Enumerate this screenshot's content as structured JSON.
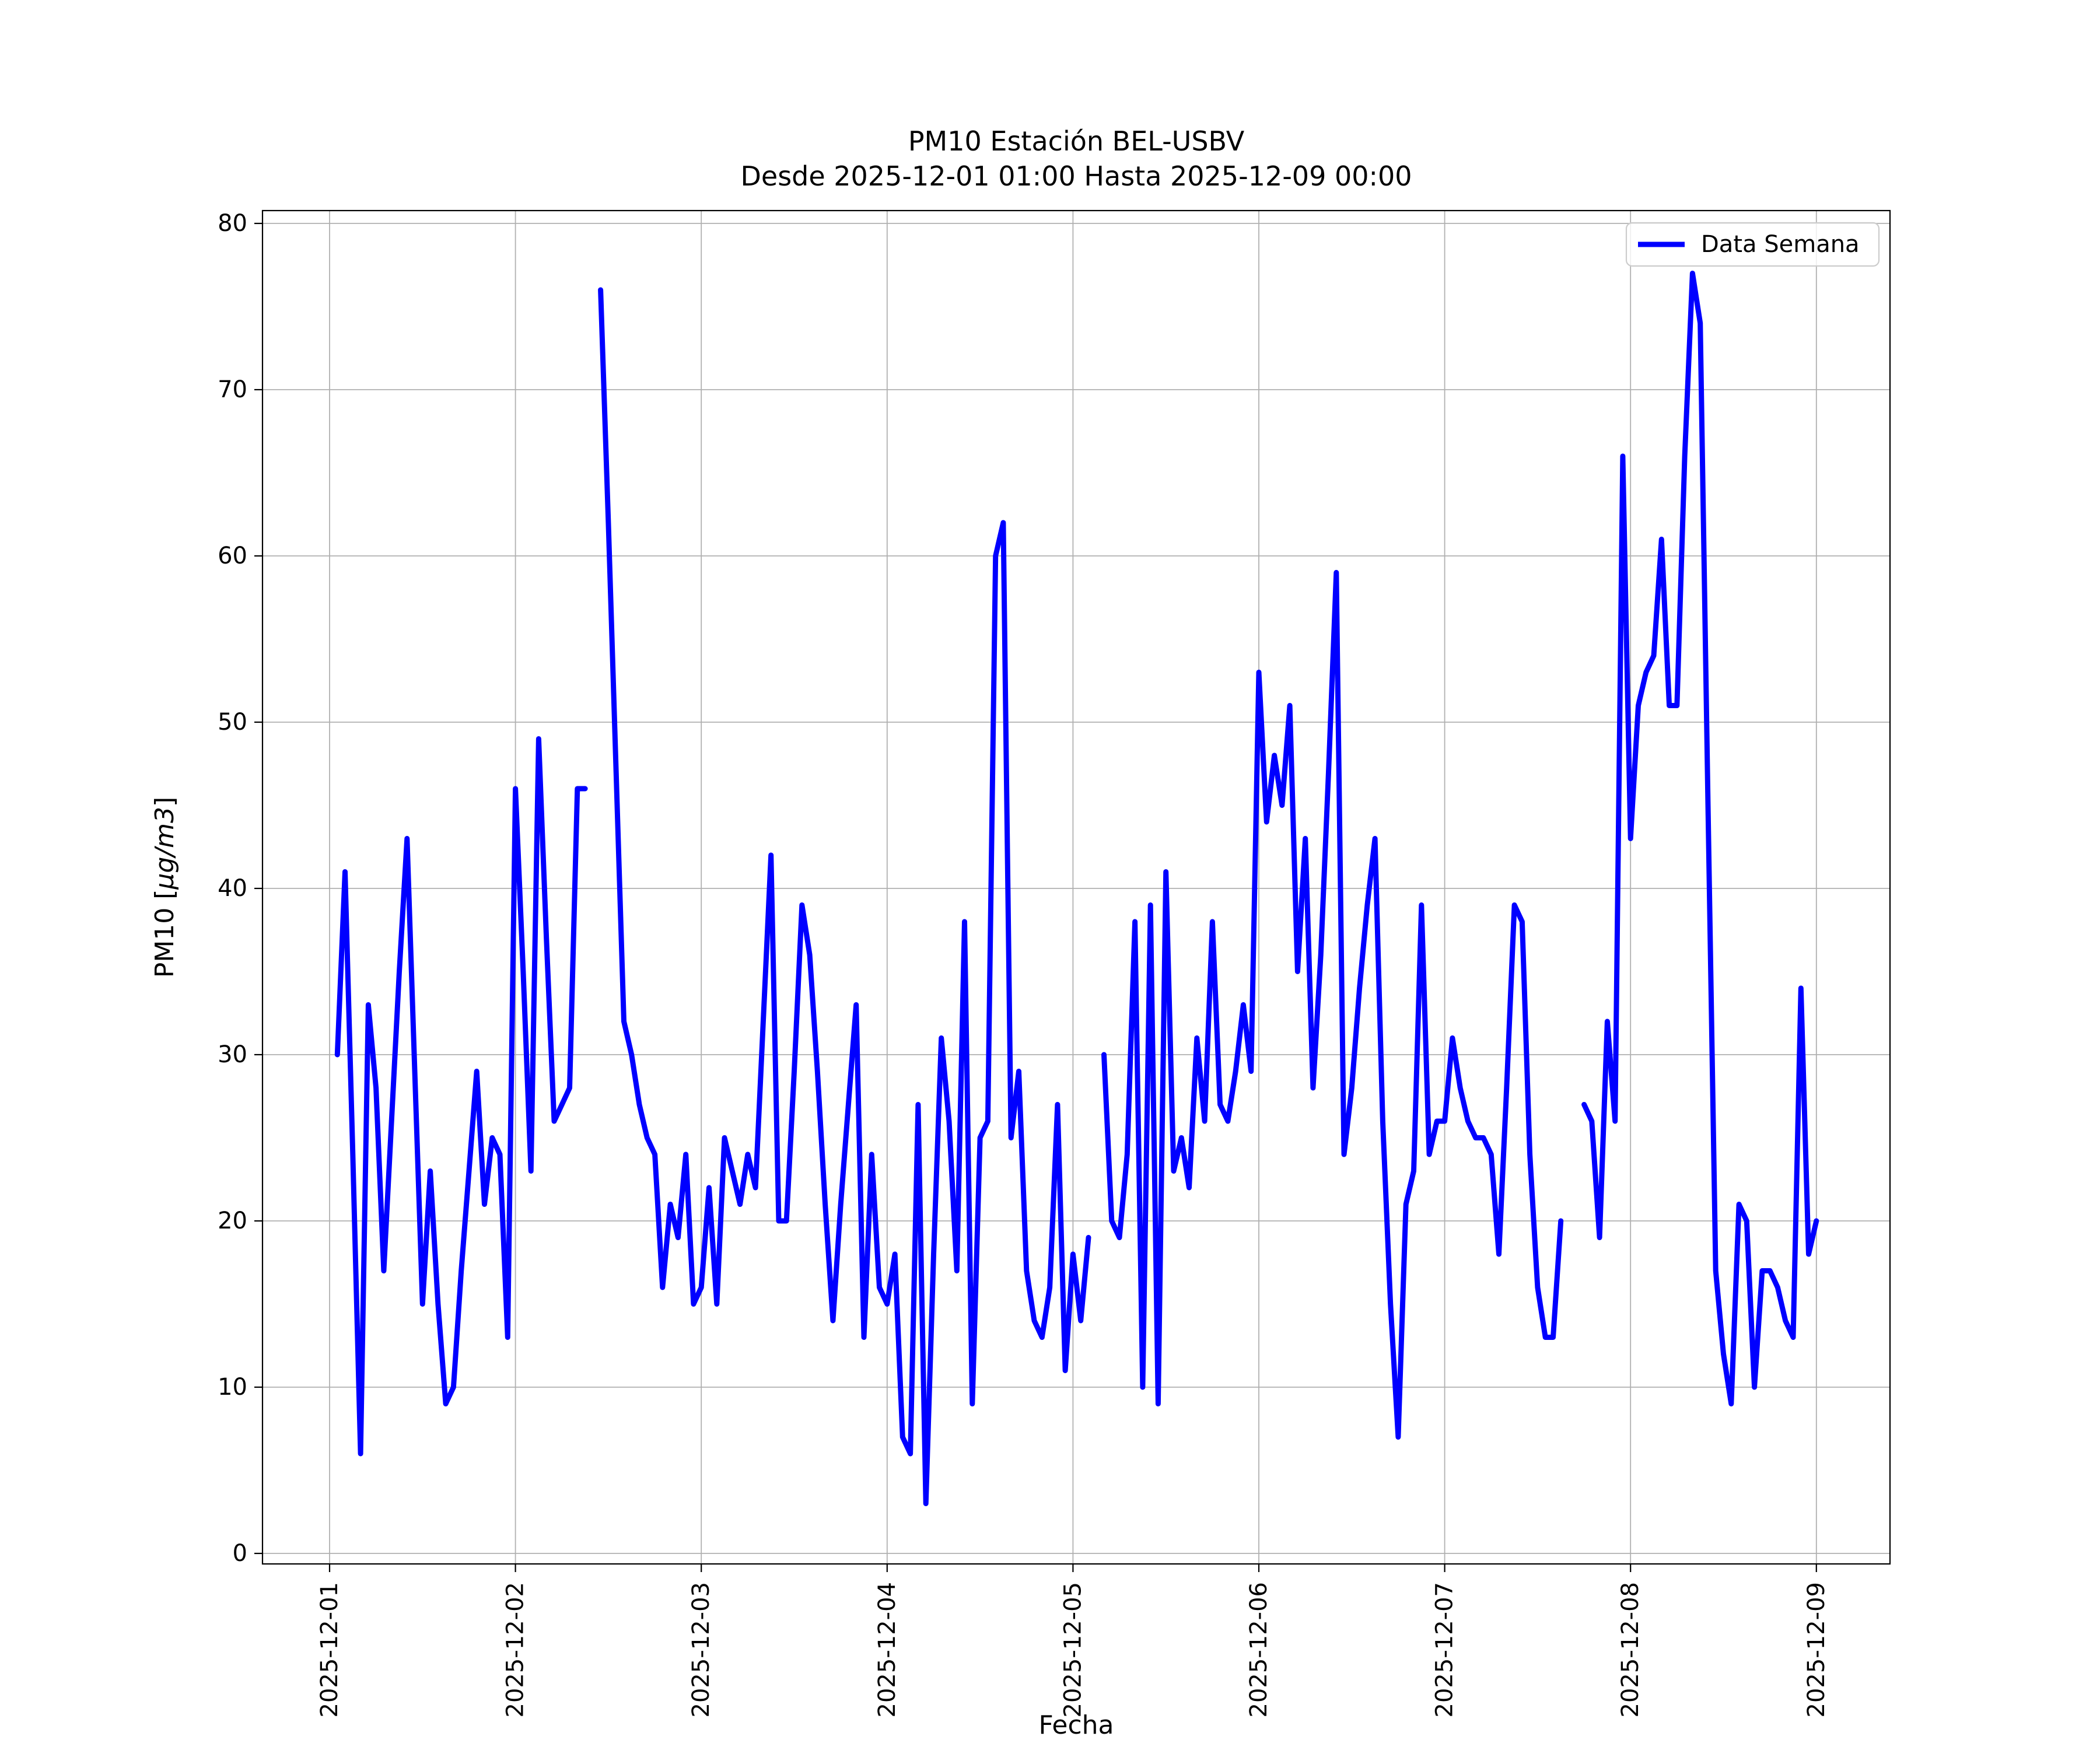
{
  "title": {
    "line1": "PM10 Estación BEL-USBV",
    "line2": "Desde 2025-12-01 01:00 Hasta 2025-12-09 00:00"
  },
  "axes": {
    "xlabel": "Fecha",
    "ylabel_prefix": "PM10 [",
    "ylabel_italic": "µg/m3",
    "ylabel_suffix": "]"
  },
  "legend": {
    "label": "Data Semana",
    "position": "upper right"
  },
  "colors": {
    "line": "#0000ff",
    "grid": "#b0b0b0",
    "spine": "#000000",
    "legend_border": "#cccccc",
    "background": "#ffffff"
  },
  "chart_data": {
    "type": "line",
    "title": "PM10 Estación BEL-USBV — Desde 2025-12-01 01:00 Hasta 2025-12-09 00:00",
    "xlabel": "Fecha",
    "ylabel": "PM10 [µg/m3]",
    "series_name": "Data Semana",
    "x_start": "2025-12-01 01:00",
    "x_end": "2025-12-09 00:00",
    "interval_hours": 1,
    "x_tick_labels": [
      "2025-12-01",
      "2025-12-02",
      "2025-12-03",
      "2025-12-04",
      "2025-12-05",
      "2025-12-06",
      "2025-12-07",
      "2025-12-08",
      "2025-12-09"
    ],
    "y_ticks": [
      0,
      10,
      20,
      30,
      40,
      50,
      60,
      70,
      80
    ],
    "ylim": [
      0,
      80
    ],
    "grid": true,
    "legend_position": "upper right",
    "values": [
      30,
      41,
      24,
      6,
      33,
      28,
      17,
      26,
      35,
      43,
      29,
      15,
      23,
      15,
      9,
      10,
      17,
      23,
      29,
      21,
      25,
      24,
      13,
      46,
      35,
      23,
      49,
      37,
      26,
      27,
      28,
      46,
      46,
      null,
      76,
      62,
      47,
      32,
      30,
      27,
      25,
      24,
      16,
      21,
      19,
      24,
      15,
      16,
      22,
      15,
      25,
      23,
      21,
      24,
      22,
      32,
      42,
      20,
      20,
      29,
      39,
      36,
      29,
      21,
      14,
      21,
      27,
      33,
      13,
      24,
      16,
      15,
      18,
      7,
      6,
      27,
      3,
      18,
      31,
      26,
      17,
      38,
      9,
      25,
      26,
      60,
      62,
      25,
      29,
      17,
      14,
      13,
      16,
      27,
      11,
      18,
      14,
      19,
      null,
      30,
      20,
      19,
      24,
      38,
      10,
      39,
      9,
      41,
      23,
      25,
      22,
      31,
      26,
      38,
      27,
      26,
      29,
      33,
      29,
      53,
      44,
      48,
      45,
      51,
      35,
      43,
      28,
      36,
      47,
      59,
      24,
      28,
      34,
      39,
      43,
      26,
      15,
      7,
      21,
      23,
      39,
      24,
      26,
      26,
      31,
      28,
      26,
      25,
      25,
      24,
      18,
      28,
      39,
      38,
      24,
      16,
      13,
      13,
      20,
      null,
      null,
      27,
      26,
      19,
      32,
      26,
      66,
      43,
      51,
      53,
      54,
      61,
      51,
      51,
      66,
      77,
      74,
      45,
      17,
      12,
      9,
      21,
      20,
      10,
      17,
      17,
      16,
      14,
      13,
      34,
      18,
      20
    ]
  }
}
